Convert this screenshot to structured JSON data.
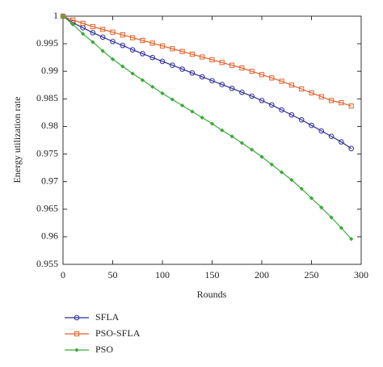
{
  "chart_data": {
    "type": "line",
    "x_label": "Rounds",
    "y_label": "Energy utilization rate",
    "x": [
      0,
      10,
      20,
      30,
      40,
      50,
      60,
      70,
      80,
      90,
      100,
      110,
      120,
      130,
      140,
      150,
      160,
      170,
      180,
      190,
      200,
      210,
      220,
      230,
      240,
      250,
      260,
      270,
      280,
      290
    ],
    "series": [
      {
        "name": "SFLA",
        "color": "#2e2e9a",
        "marker": "circle",
        "values": [
          1,
          0.9988,
          0.9979,
          0.997,
          0.9962,
          0.9954,
          0.9947,
          0.9939,
          0.9932,
          0.9925,
          0.9918,
          0.9911,
          0.9904,
          0.9897,
          0.989,
          0.9883,
          0.9876,
          0.9869,
          0.9862,
          0.9855,
          0.9847,
          0.9839,
          0.983,
          0.9821,
          0.9812,
          0.9802,
          0.9792,
          0.9782,
          0.9772,
          0.976
        ]
      },
      {
        "name": "PSO-SFLA",
        "color": "#e2622c",
        "marker": "square",
        "values": [
          1,
          0.9993,
          0.9987,
          0.9981,
          0.9976,
          0.9971,
          0.9966,
          0.9961,
          0.9956,
          0.9951,
          0.9946,
          0.9941,
          0.9936,
          0.9931,
          0.9926,
          0.9921,
          0.9916,
          0.9911,
          0.9906,
          0.99,
          0.9894,
          0.9888,
          0.9882,
          0.9875,
          0.9868,
          0.9861,
          0.9854,
          0.9847,
          0.9843,
          0.9837
        ]
      },
      {
        "name": "PSO",
        "color": "#3caa3c",
        "marker": "star",
        "values": [
          1,
          0.9985,
          0.9968,
          0.9953,
          0.9937,
          0.9922,
          0.9909,
          0.9896,
          0.9884,
          0.9872,
          0.986,
          0.9849,
          0.9838,
          0.9827,
          0.9816,
          0.9805,
          0.9793,
          0.9782,
          0.977,
          0.9758,
          0.9745,
          0.9731,
          0.9717,
          0.9703,
          0.9687,
          0.967,
          0.9653,
          0.9635,
          0.9616,
          0.9596
        ]
      }
    ],
    "xlim": [
      0,
      300
    ],
    "xticks": [
      0,
      50,
      100,
      150,
      200,
      250,
      300
    ],
    "ylim": [
      0.955,
      1
    ],
    "yticks": [
      0.955,
      0.96,
      0.965,
      0.97,
      0.975,
      0.98,
      0.985,
      0.99,
      0.995,
      1
    ],
    "grid": false,
    "legend": "below-left"
  }
}
